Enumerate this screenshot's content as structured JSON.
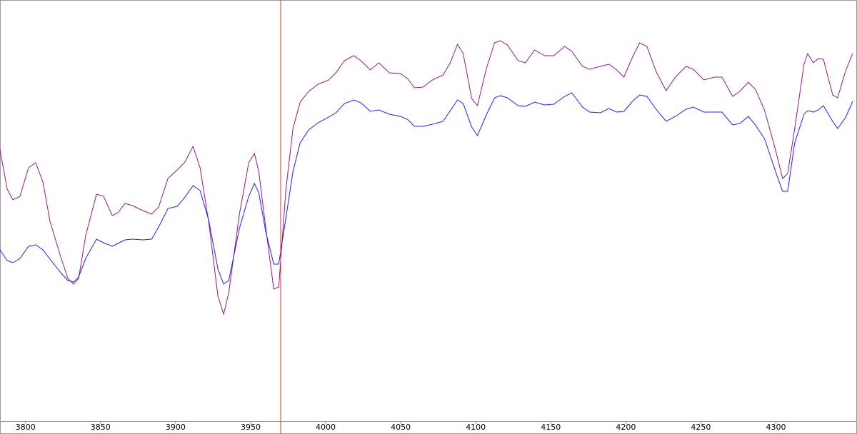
{
  "chart_data": {
    "type": "line",
    "x": [
      3783,
      3787.8,
      3791.6,
      3796.3,
      3802,
      3806.8,
      3811.6,
      3816.3,
      3823.5,
      3828.2,
      3832,
      3835.4,
      3840.1,
      3847.3,
      3852,
      3857.8,
      3861.6,
      3866.3,
      3871.1,
      3878.2,
      3884,
      3888.7,
      3894.9,
      3901.1,
      3905.9,
      3911.6,
      3916.3,
      3922,
      3928.2,
      3932,
      3935.4,
      3942.5,
      3948.7,
      3952.5,
      3955.4,
      3960.1,
      3965.4,
      3968.7,
      3973.5,
      3978.2,
      3983,
      3988.7,
      3994.9,
      4002,
      4006.8,
      4012.5,
      4018.7,
      4023.5,
      4029.7,
      4035.4,
      4042.5,
      4049.7,
      4054.4,
      4059.2,
      4064.9,
      4071.1,
      4078.2,
      4083,
      4087.8,
      4091.6,
      4097.3,
      4101.1,
      4106.8,
      4112.5,
      4116.3,
      4121.1,
      4128.2,
      4133,
      4139.2,
      4145.9,
      4152,
      4159.2,
      4164,
      4171.1,
      4175.9,
      4183,
      4188.7,
      4193.9,
      4198.7,
      4204.4,
      4209.2,
      4214,
      4220.1,
      4226.8,
      4233,
      4240.1,
      4244.9,
      4252,
      4259.2,
      4264,
      4271.1,
      4275.9,
      4281.6,
      4286.3,
      4292.5,
      4299.7,
      4304.4,
      4307.8,
      4312.5,
      4318.7,
      4321.1,
      4324.9,
      4328.2,
      4331.6,
      4337.8,
      4341.1,
      4346.3,
      4351.1
    ],
    "series": [
      {
        "color": "#8b1a8b",
        "values": [
          380,
          325,
          310,
          315,
          355,
          362,
          335,
          280,
          230,
          200,
          192,
          200,
          260,
          318,
          315,
          288,
          292,
          305,
          302,
          295,
          290,
          300,
          340,
          352,
          362,
          385,
          355,
          280,
          175,
          150,
          180,
          290,
          362,
          375,
          350,
          270,
          185,
          188,
          325,
          410,
          447,
          462,
          472,
          478,
          488,
          505,
          512,
          505,
          492,
          502,
          488,
          487,
          480,
          467,
          468,
          478,
          485,
          502,
          528,
          515,
          452,
          442,
          492,
          530,
          533,
          527,
          505,
          502,
          520,
          512,
          512,
          525,
          518,
          497,
          493,
          497,
          500,
          492,
          482,
          510,
          530,
          525,
          490,
          463,
          482,
          497,
          493,
          478,
          482,
          482,
          455,
          462,
          475,
          465,
          435,
          380,
          340,
          347,
          410,
          500,
          515,
          502,
          508,
          507,
          457,
          453,
          490,
          515
        ]
      },
      {
        "color": "#2020ff",
        "values": [
          240,
          225,
          222,
          228,
          245,
          247,
          240,
          227,
          208,
          197,
          195,
          202,
          228,
          255,
          250,
          245,
          249,
          254,
          255,
          254,
          255,
          272,
          298,
          301,
          313,
          330,
          323,
          282,
          213,
          192,
          197,
          270,
          315,
          333,
          320,
          265,
          220,
          220,
          285,
          350,
          390,
          408,
          418,
          426,
          432,
          445,
          450,
          446,
          434,
          436,
          430,
          427,
          423,
          413,
          413,
          416,
          420,
          435,
          450,
          445,
          412,
          400,
          428,
          453,
          456,
          453,
          442,
          441,
          447,
          443,
          444,
          455,
          460,
          440,
          433,
          432,
          438,
          433,
          434,
          448,
          457,
          455,
          437,
          420,
          427,
          437,
          440,
          433,
          433,
          433,
          415,
          417,
          427,
          415,
          395,
          350,
          322,
          322,
          390,
          430,
          435,
          433,
          436,
          442,
          420,
          410,
          425,
          448
        ]
      }
    ],
    "cursor_x": 3970,
    "cursor_color": "#e03030",
    "xlim": [
      3783,
      4354
    ],
    "xticks": [
      3800,
      3850,
      3900,
      3950,
      4000,
      4050,
      4100,
      4150,
      4200,
      4250,
      4300
    ],
    "ylim": [
      0,
      590
    ]
  }
}
